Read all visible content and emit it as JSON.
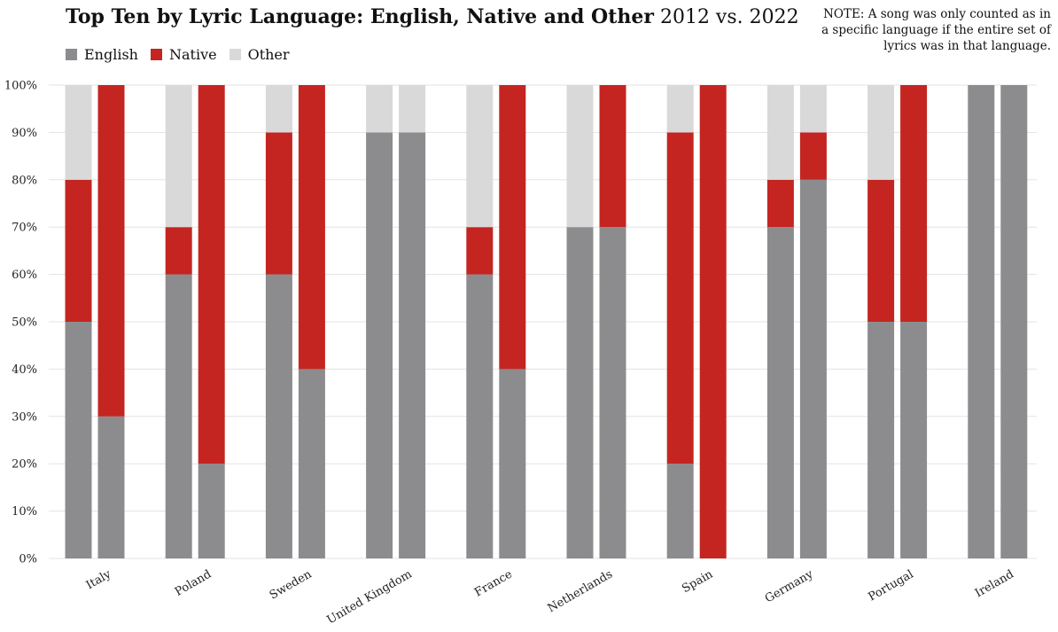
{
  "chart_data": {
    "type": "bar",
    "stacked": true,
    "title_bold": "Top Ten by Lyric Language: English, Native and Other",
    "title_regular": "2012 vs. 2022",
    "note": "NOTE: A song was only counted as in a specific language if the entire set of lyrics was in that language.",
    "ylim": [
      0,
      100
    ],
    "yticks": [
      "0%",
      "10%",
      "20%",
      "30%",
      "40%",
      "50%",
      "60%",
      "70%",
      "80%",
      "90%",
      "100%"
    ],
    "grid": true,
    "legend_position": "top-left",
    "categories": [
      "Italy",
      "Poland",
      "Sweden",
      "United Kingdom",
      "France",
      "Netherlands",
      "Spain",
      "Germany",
      "Portugal",
      "Ireland"
    ],
    "series": [
      {
        "name": "English",
        "color": "#8c8c8e",
        "values_2012": [
          50,
          60,
          60,
          90,
          60,
          70,
          20,
          70,
          50,
          100
        ],
        "values_2022": [
          30,
          20,
          40,
          90,
          40,
          70,
          0,
          80,
          50,
          100
        ]
      },
      {
        "name": "Native",
        "color": "#c42521",
        "values_2012": [
          30,
          10,
          30,
          0,
          10,
          0,
          70,
          10,
          30,
          0
        ],
        "values_2022": [
          70,
          80,
          60,
          0,
          60,
          30,
          100,
          10,
          50,
          0
        ]
      },
      {
        "name": "Other",
        "color": "#d9d9d9",
        "values_2012": [
          20,
          30,
          10,
          10,
          30,
          30,
          10,
          20,
          20,
          0
        ],
        "values_2022": [
          0,
          0,
          0,
          10,
          0,
          0,
          0,
          10,
          0,
          0
        ]
      }
    ]
  }
}
